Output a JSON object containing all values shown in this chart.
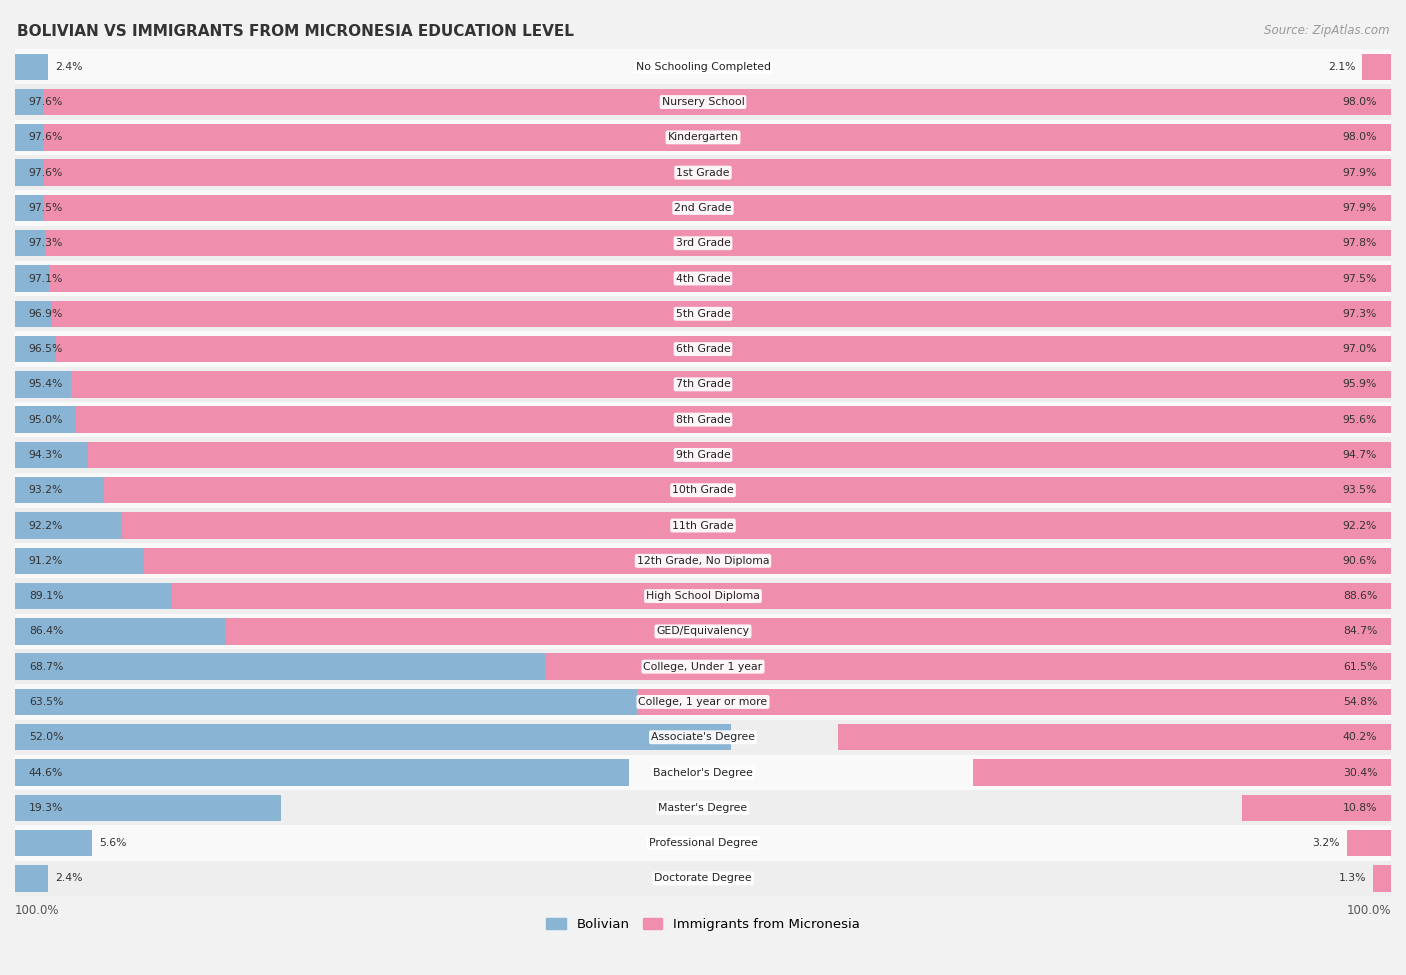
{
  "title": "BOLIVIAN VS IMMIGRANTS FROM MICRONESIA EDUCATION LEVEL",
  "source": "Source: ZipAtlas.com",
  "categories": [
    "No Schooling Completed",
    "Nursery School",
    "Kindergarten",
    "1st Grade",
    "2nd Grade",
    "3rd Grade",
    "4th Grade",
    "5th Grade",
    "6th Grade",
    "7th Grade",
    "8th Grade",
    "9th Grade",
    "10th Grade",
    "11th Grade",
    "12th Grade, No Diploma",
    "High School Diploma",
    "GED/Equivalency",
    "College, Under 1 year",
    "College, 1 year or more",
    "Associate's Degree",
    "Bachelor's Degree",
    "Master's Degree",
    "Professional Degree",
    "Doctorate Degree"
  ],
  "bolivian": [
    2.4,
    97.6,
    97.6,
    97.6,
    97.5,
    97.3,
    97.1,
    96.9,
    96.5,
    95.4,
    95.0,
    94.3,
    93.2,
    92.2,
    91.2,
    89.1,
    86.4,
    68.7,
    63.5,
    52.0,
    44.6,
    19.3,
    5.6,
    2.4
  ],
  "micronesia": [
    2.1,
    98.0,
    98.0,
    97.9,
    97.9,
    97.8,
    97.5,
    97.3,
    97.0,
    95.9,
    95.6,
    94.7,
    93.5,
    92.2,
    90.6,
    88.6,
    84.7,
    61.5,
    54.8,
    40.2,
    30.4,
    10.8,
    3.2,
    1.3
  ],
  "bolivian_color": "#8ab4d4",
  "micronesia_color": "#f08fad",
  "background_color": "#f2f2f2",
  "row_bg_light": "#f9f9f9",
  "row_bg_dark": "#eeeeee",
  "legend_bolivian": "Bolivian",
  "legend_micronesia": "Immigrants from Micronesia"
}
